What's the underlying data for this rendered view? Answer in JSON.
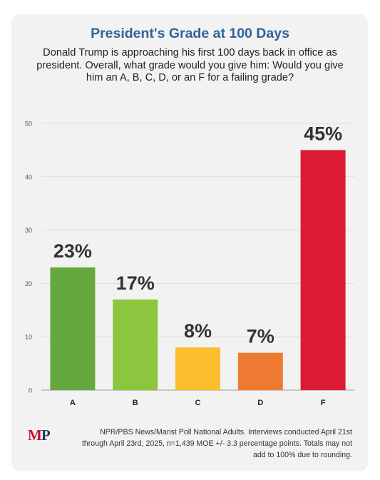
{
  "chart_data": {
    "type": "bar",
    "title": "President's Grade at 100 Days",
    "subtitle": "Donald Trump is approaching his first 100 days back in office as president. Overall, what grade would you give him: Would you give him an A, B, C, D, or an F for a failing grade?",
    "categories": [
      "A",
      "B",
      "C",
      "D",
      "F"
    ],
    "values": [
      23,
      17,
      8,
      7,
      45
    ],
    "data_labels": [
      "23%",
      "17%",
      "8%",
      "7%",
      "45%"
    ],
    "bar_colors": [
      "#65a83d",
      "#8cc63f",
      "#fbbf2d",
      "#ef7b32",
      "#dc1a35"
    ],
    "ylim": [
      0,
      50
    ],
    "yticks": [
      0,
      10,
      20,
      30,
      40,
      50
    ],
    "grid": true,
    "xlabel": "",
    "ylabel": ""
  },
  "footer": {
    "source": "NPR/PBS News/Marist Poll National Adults. Interviews conducted April 21st through April 23rd, 2025, n=1,439 MOE +/- 3.3 percentage points. Totals may not add to 100% due to rounding.",
    "logo_text": "MP"
  },
  "colors": {
    "title": "#2f6496",
    "grid": "#dddddd",
    "axis": "#999999"
  }
}
